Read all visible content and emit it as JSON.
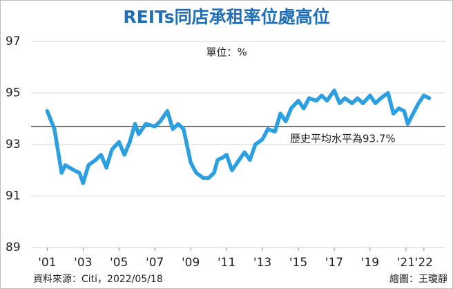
{
  "chart_data": {
    "type": "line",
    "title": "REITs同店承租率位處高位",
    "unit": "單位：%",
    "source": "資料來源：Citi，2022/05/18",
    "credit": "繪圖：王瓊靜",
    "annotation": "歷史平均水平為93.7%",
    "average": 93.7,
    "average_color": "#6a6a6a",
    "color": "#2b9fe0",
    "x": [
      2001.0,
      2001.4,
      2001.8,
      2002.0,
      2002.5,
      2002.8,
      2003.0,
      2003.3,
      2003.7,
      2004.0,
      2004.3,
      2004.6,
      2005.0,
      2005.3,
      2005.6,
      2005.9,
      2006.1,
      2006.5,
      2007.0,
      2007.3,
      2007.7,
      2008.0,
      2008.3,
      2008.6,
      2009.0,
      2009.3,
      2009.7,
      2010.0,
      2010.3,
      2010.5,
      2010.8,
      2011.0,
      2011.3,
      2011.6,
      2012.0,
      2012.3,
      2012.6,
      2013.0,
      2013.3,
      2013.7,
      2014.0,
      2014.3,
      2014.6,
      2015.0,
      2015.3,
      2015.6,
      2016.0,
      2016.3,
      2016.6,
      2017.0,
      2017.3,
      2017.6,
      2018.0,
      2018.3,
      2018.6,
      2019.0,
      2019.3,
      2019.6,
      2020.0,
      2020.3,
      2020.6,
      2020.9,
      2021.1,
      2021.4,
      2021.7,
      2022.0,
      2022.3
    ],
    "values": [
      94.3,
      93.6,
      91.9,
      92.2,
      92.0,
      91.9,
      91.5,
      92.2,
      92.4,
      92.6,
      92.1,
      92.8,
      93.1,
      92.6,
      93.1,
      93.8,
      93.4,
      93.8,
      93.7,
      93.9,
      94.3,
      93.6,
      93.8,
      93.6,
      92.3,
      91.9,
      91.7,
      91.7,
      91.9,
      92.4,
      92.5,
      92.6,
      92.0,
      92.3,
      92.7,
      92.4,
      93.0,
      93.2,
      93.6,
      93.5,
      94.2,
      93.9,
      94.4,
      94.7,
      94.4,
      94.8,
      94.7,
      94.9,
      94.7,
      95.1,
      94.6,
      94.8,
      94.6,
      94.8,
      94.6,
      94.9,
      94.6,
      94.8,
      95.0,
      94.2,
      94.4,
      94.3,
      93.8,
      94.2,
      94.6,
      94.9,
      94.8
    ],
    "xlim": [
      2000.1,
      2023.2
    ],
    "xticks": [
      {
        "value": 2001,
        "label": "'01"
      },
      {
        "value": 2003,
        "label": "'03"
      },
      {
        "value": 2005,
        "label": "'05"
      },
      {
        "value": 2007,
        "label": "'07"
      },
      {
        "value": 2009,
        "label": "'09"
      },
      {
        "value": 2011,
        "label": "'11"
      },
      {
        "value": 2013,
        "label": "'13"
      },
      {
        "value": 2015,
        "label": "'15"
      },
      {
        "value": 2017,
        "label": "'17"
      },
      {
        "value": 2019,
        "label": "'19"
      },
      {
        "value": 2021,
        "label": "'21"
      },
      {
        "value": 2022,
        "label": "'22"
      }
    ],
    "ylim": [
      89,
      97
    ],
    "yticks": [
      89,
      91,
      93,
      95,
      97
    ],
    "grid": true
  }
}
